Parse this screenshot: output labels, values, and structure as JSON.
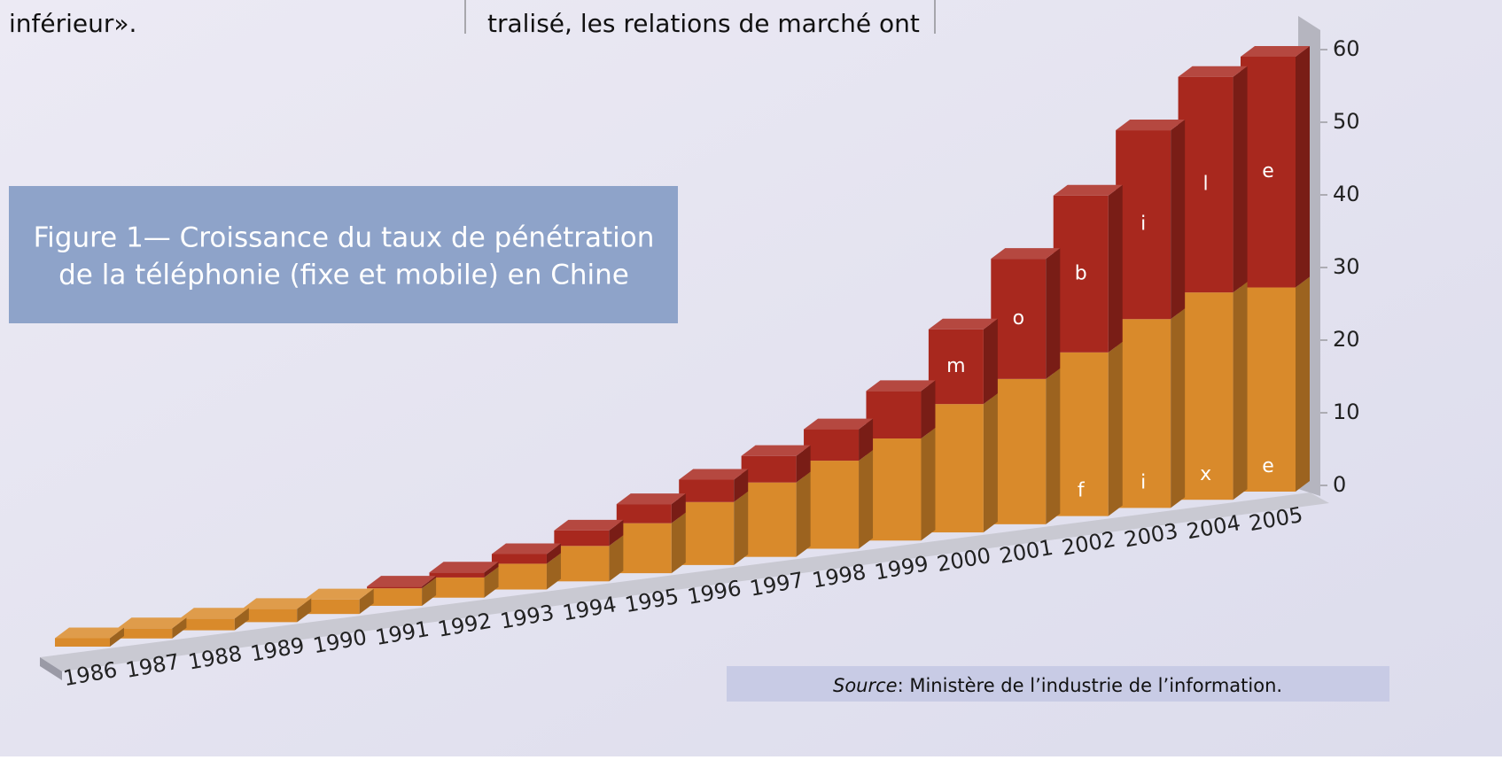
{
  "page": {
    "text_left": "inférieur».",
    "text_right": "tralisé, les relations de marché ont",
    "source_label": "Source",
    "source_text": ": Ministère de l’industrie de l’information."
  },
  "chart_data": {
    "type": "bar3d_stacked",
    "title": [
      "Figure 1— Croissance du taux de pénétration",
      "de la téléphonie (fixe et mobile) en Chine"
    ],
    "categories": [
      "1986",
      "1987",
      "1988",
      "1989",
      "1990",
      "1991",
      "1992",
      "1993",
      "1994",
      "1995",
      "1996",
      "1997",
      "1998",
      "1999",
      "2000",
      "2001",
      "2002",
      "2003",
      "2004",
      "2005"
    ],
    "series": [
      {
        "color": "#d98a2b",
        "values": [
          0.4,
          0.5,
          0.6,
          0.7,
          0.8,
          1.0,
          1.2,
          1.6,
          2.3,
          3.4,
          4.5,
          5.6,
          7.0,
          8.6,
          11.5,
          13.9,
          16.8,
          20.9,
          24.9,
          26.8
        ],
        "letters": [
          null,
          null,
          null,
          null,
          null,
          null,
          null,
          null,
          null,
          null,
          null,
          null,
          null,
          null,
          null,
          null,
          "f",
          "i",
          "x",
          "e"
        ]
      },
      {
        "color": "#a8281e",
        "values": [
          0,
          0,
          0,
          0,
          0,
          0.1,
          0.3,
          0.6,
          1.0,
          1.3,
          1.6,
          2.0,
          2.5,
          4.0,
          6.7,
          11.5,
          16.1,
          20.9,
          25.9,
          30.3
        ],
        "letters": [
          null,
          null,
          null,
          null,
          null,
          null,
          null,
          null,
          null,
          null,
          null,
          null,
          null,
          null,
          "m",
          "o",
          "b",
          "i",
          "l",
          "e"
        ]
      }
    ],
    "ylim": [
      0,
      60
    ],
    "yticks": [
      0,
      10,
      20,
      30,
      40,
      50,
      60
    ]
  }
}
